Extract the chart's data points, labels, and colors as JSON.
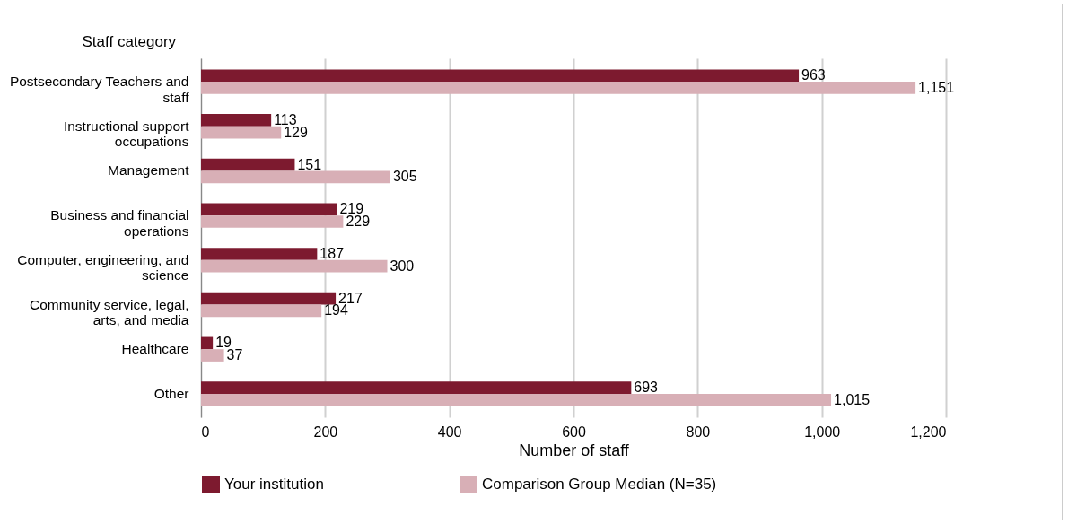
{
  "chart_data": {
    "type": "bar",
    "orientation": "horizontal",
    "xlabel": "Number of staff",
    "ylabel": "Staff category",
    "categories": [
      "Postsecondary Teachers and staff",
      "Instructional support occupations",
      "Management",
      "Business and financial operations",
      "Computer, engineering, and science",
      "Community service, legal, arts, and media",
      "Healthcare",
      "Other"
    ],
    "series": [
      {
        "name": "Your institution",
        "color": "#7d1a2f",
        "values": [
          963,
          113,
          151,
          219,
          187,
          217,
          19,
          693
        ],
        "value_labels": [
          "963",
          "113",
          "151",
          "219",
          "187",
          "217",
          "19",
          "693"
        ]
      },
      {
        "name": "Comparison Group Median (N=35)",
        "color": "#d8afb6",
        "values": [
          1151,
          129,
          305,
          229,
          300,
          194,
          37,
          1015
        ],
        "value_labels": [
          "1,151",
          "129",
          "305",
          "229",
          "300",
          "194",
          "37",
          "1,015"
        ]
      }
    ],
    "xlim": [
      0,
      1200
    ],
    "xticks": [
      0,
      200,
      400,
      600,
      800,
      {
        "value": 1000,
        "label": "1,000"
      },
      {
        "value": 1200,
        "label": "1,200"
      }
    ],
    "grid": "x",
    "legend": "bottom left"
  }
}
